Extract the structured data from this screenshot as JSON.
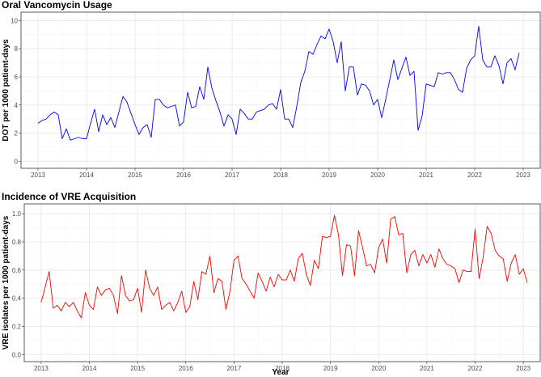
{
  "xlabel": "Year",
  "chart_data": [
    {
      "type": "line",
      "title": "Oral Vancomycin Usage",
      "xlabel": "Year",
      "ylabel": "DOT per 1000 patient-days",
      "xlim": [
        2012.65,
        2023.35
      ],
      "ylim": [
        -0.5,
        10.6
      ],
      "xticks": [
        2013,
        2014,
        2015,
        2016,
        2017,
        2018,
        2019,
        2020,
        2021,
        2022,
        2023
      ],
      "yticks": [
        0,
        2,
        4,
        6,
        8,
        10
      ],
      "ytick_labels": [
        "0",
        "2",
        "4",
        "6",
        "8",
        "10"
      ],
      "grid": true,
      "series": [
        {
          "color": "#0000ff",
          "x_start": 2013.0,
          "x_step": 0.08333,
          "values": [
            2.7,
            2.9,
            3.0,
            3.3,
            3.5,
            3.3,
            1.6,
            2.3,
            1.5,
            1.6,
            1.7,
            1.6,
            1.6,
            2.7,
            3.7,
            2.1,
            3.3,
            2.6,
            3.1,
            2.4,
            3.5,
            4.6,
            4.2,
            3.4,
            2.6,
            1.9,
            2.4,
            2.6,
            1.7,
            4.4,
            4.4,
            4.0,
            3.8,
            3.9,
            4.0,
            2.5,
            2.8,
            4.9,
            3.8,
            3.9,
            5.3,
            4.4,
            6.7,
            5.2,
            4.3,
            3.5,
            2.5,
            3.3,
            3.0,
            1.9,
            3.7,
            3.4,
            3.0,
            3.0,
            3.5,
            3.6,
            3.7,
            4.0,
            4.1,
            3.7,
            5.1,
            3.0,
            3.0,
            2.4,
            3.9,
            5.6,
            6.4,
            7.8,
            7.6,
            8.3,
            8.9,
            8.7,
            9.4,
            8.5,
            7.0,
            8.5,
            5.0,
            6.7,
            6.7,
            4.7,
            5.5,
            5.4,
            5.0,
            4.0,
            4.4,
            3.1,
            4.4,
            5.8,
            7.2,
            5.8,
            6.6,
            7.4,
            6.1,
            6.4,
            2.2,
            3.2,
            5.5,
            5.4,
            5.3,
            6.3,
            6.2,
            6.3,
            6.3,
            5.8,
            5.1,
            4.9,
            6.6,
            7.2,
            7.5,
            9.6,
            7.2,
            6.7,
            6.7,
            7.5,
            6.8,
            5.5,
            7.0,
            7.3,
            6.5,
            7.7
          ]
        }
      ]
    },
    {
      "type": "line",
      "title": "Incidence of VRE Acquisition",
      "xlabel": "Year",
      "ylabel": "VRE isolates per 1000 patient-days",
      "xlim": [
        2012.65,
        2023.35
      ],
      "ylim": [
        -0.05,
        1.07
      ],
      "xticks": [
        2013,
        2014,
        2015,
        2016,
        2017,
        2018,
        2019,
        2020,
        2021,
        2022,
        2023
      ],
      "yticks": [
        0,
        0.2,
        0.4,
        0.6,
        0.8,
        1.0
      ],
      "ytick_labels": [
        "0.0",
        "0.2",
        "0.4",
        "0.6",
        "0.8",
        "1.0"
      ],
      "grid": true,
      "series": [
        {
          "color": "#ff0000",
          "x_start": 2013.0,
          "x_step": 0.08333,
          "values": [
            0.37,
            0.48,
            0.59,
            0.33,
            0.35,
            0.31,
            0.37,
            0.34,
            0.37,
            0.31,
            0.26,
            0.44,
            0.35,
            0.32,
            0.48,
            0.42,
            0.46,
            0.47,
            0.42,
            0.29,
            0.56,
            0.42,
            0.38,
            0.39,
            0.47,
            0.3,
            0.6,
            0.47,
            0.42,
            0.48,
            0.32,
            0.35,
            0.37,
            0.31,
            0.37,
            0.45,
            0.3,
            0.34,
            0.52,
            0.39,
            0.59,
            0.57,
            0.7,
            0.44,
            0.54,
            0.52,
            0.32,
            0.45,
            0.67,
            0.7,
            0.54,
            0.5,
            0.45,
            0.4,
            0.58,
            0.52,
            0.45,
            0.55,
            0.48,
            0.57,
            0.53,
            0.53,
            0.6,
            0.52,
            0.68,
            0.72,
            0.57,
            0.49,
            0.67,
            0.61,
            0.84,
            0.83,
            0.84,
            0.99,
            0.85,
            0.56,
            0.78,
            0.77,
            0.56,
            0.88,
            0.76,
            0.63,
            0.64,
            0.58,
            0.76,
            0.82,
            0.65,
            0.96,
            0.98,
            0.85,
            0.86,
            0.58,
            0.71,
            0.74,
            0.63,
            0.71,
            0.65,
            0.71,
            0.62,
            0.75,
            0.68,
            0.64,
            0.63,
            0.61,
            0.51,
            0.6,
            0.59,
            0.59,
            0.89,
            0.54,
            0.69,
            0.91,
            0.86,
            0.74,
            0.7,
            0.68,
            0.52,
            0.65,
            0.71,
            0.57,
            0.61,
            0.51
          ]
        }
      ]
    }
  ]
}
